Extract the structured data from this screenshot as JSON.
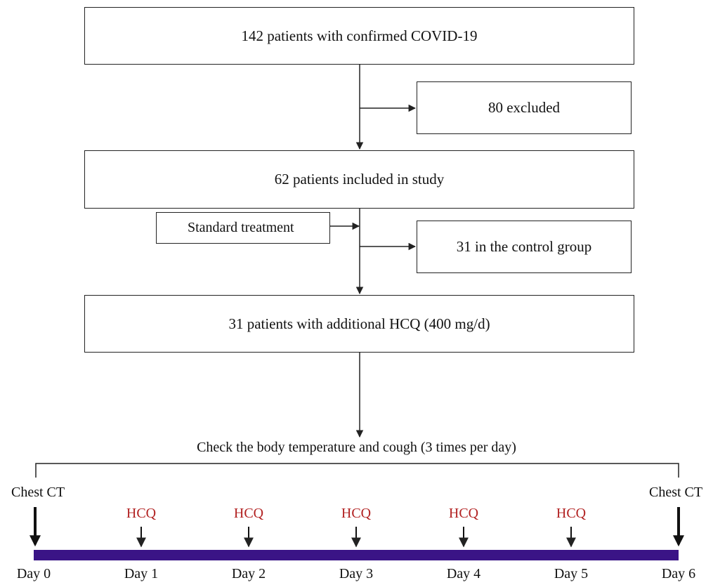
{
  "flow": {
    "total": "142 patients with confirmed COVID-19",
    "excluded": "80 excluded",
    "included": "62  patients included in study",
    "standard": "Standard treatment",
    "control": "31  in the control group",
    "hcq_group": "31  patients with additional HCQ (400 mg/d)"
  },
  "timeline": {
    "check_label": "Check the body temperature and cough (3 times per day)",
    "ct_start": "Chest CT",
    "ct_end": "Chest CT",
    "dose_label": "HCQ",
    "days": [
      "Day 0",
      "Day 1",
      "Day 2",
      "Day 3",
      "Day 4",
      "Day 5",
      "Day 6"
    ]
  },
  "colors": {
    "timeline_bar": "#3a1486",
    "hcq_text": "#b22222",
    "line": "#222222"
  }
}
